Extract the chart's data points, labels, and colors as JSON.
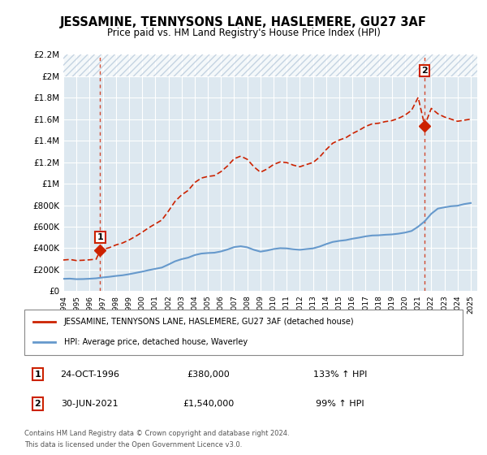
{
  "title": "JESSAMINE, TENNYSONS LANE, HASLEMERE, GU27 3AF",
  "subtitle": "Price paid vs. HM Land Registry's House Price Index (HPI)",
  "legend_line1": "JESSAMINE, TENNYSONS LANE, HASLEMERE, GU27 3AF (detached house)",
  "legend_line2": "HPI: Average price, detached house, Waverley",
  "sale1_label": "1",
  "sale1_date": "24-OCT-1996",
  "sale1_price": "£380,000",
  "sale1_hpi": "133% ↑ HPI",
  "sale1_year": 1996.81,
  "sale1_value": 380000,
  "sale2_label": "2",
  "sale2_date": "30-JUN-2021",
  "sale2_price": "£1,540,000",
  "sale2_hpi": "99% ↑ HPI",
  "sale2_year": 2021.5,
  "sale2_value": 1540000,
  "footnote1": "Contains HM Land Registry data © Crown copyright and database right 2024.",
  "footnote2": "This data is licensed under the Open Government Licence v3.0.",
  "xmin": 1994.0,
  "xmax": 2025.5,
  "ymin": 0,
  "ymax": 2200000,
  "yticks": [
    0,
    200000,
    400000,
    600000,
    800000,
    1000000,
    1200000,
    1400000,
    1600000,
    1800000,
    2000000,
    2200000
  ],
  "ytick_labels": [
    "£0",
    "£200K",
    "£400K",
    "£600K",
    "£800K",
    "£1M",
    "£1.2M",
    "£1.4M",
    "£1.6M",
    "£1.8M",
    "£2M",
    "£2.2M"
  ],
  "xticks": [
    1994,
    1995,
    1996,
    1997,
    1998,
    1999,
    2000,
    2001,
    2002,
    2003,
    2004,
    2005,
    2006,
    2007,
    2008,
    2009,
    2010,
    2011,
    2012,
    2013,
    2014,
    2015,
    2016,
    2017,
    2018,
    2019,
    2020,
    2021,
    2022,
    2023,
    2024,
    2025
  ],
  "hpi_color": "#6699cc",
  "house_color": "#cc2200",
  "sale_marker_color": "#cc2200",
  "background_plot": "#dde8f0",
  "hatch_color": "#b0c4d8",
  "grid_color": "#ffffff",
  "hpi_data": [
    [
      1994.0,
      115000
    ],
    [
      1994.5,
      117000
    ],
    [
      1995.0,
      112000
    ],
    [
      1995.5,
      113000
    ],
    [
      1996.0,
      116000
    ],
    [
      1996.5,
      120000
    ],
    [
      1997.0,
      128000
    ],
    [
      1997.5,
      134000
    ],
    [
      1998.0,
      142000
    ],
    [
      1998.5,
      148000
    ],
    [
      1999.0,
      158000
    ],
    [
      1999.5,
      170000
    ],
    [
      2000.0,
      182000
    ],
    [
      2000.5,
      196000
    ],
    [
      2001.0,
      208000
    ],
    [
      2001.5,
      220000
    ],
    [
      2002.0,
      248000
    ],
    [
      2002.5,
      278000
    ],
    [
      2003.0,
      298000
    ],
    [
      2003.5,
      312000
    ],
    [
      2004.0,
      336000
    ],
    [
      2004.5,
      350000
    ],
    [
      2005.0,
      355000
    ],
    [
      2005.5,
      358000
    ],
    [
      2006.0,
      370000
    ],
    [
      2006.5,
      388000
    ],
    [
      2007.0,
      410000
    ],
    [
      2007.5,
      418000
    ],
    [
      2008.0,
      408000
    ],
    [
      2008.5,
      385000
    ],
    [
      2009.0,
      368000
    ],
    [
      2009.5,
      378000
    ],
    [
      2010.0,
      392000
    ],
    [
      2010.5,
      400000
    ],
    [
      2011.0,
      398000
    ],
    [
      2011.5,
      390000
    ],
    [
      2012.0,
      385000
    ],
    [
      2012.5,
      392000
    ],
    [
      2013.0,
      398000
    ],
    [
      2013.5,
      415000
    ],
    [
      2014.0,
      438000
    ],
    [
      2014.5,
      458000
    ],
    [
      2015.0,
      468000
    ],
    [
      2015.5,
      475000
    ],
    [
      2016.0,
      488000
    ],
    [
      2016.5,
      498000
    ],
    [
      2017.0,
      510000
    ],
    [
      2017.5,
      518000
    ],
    [
      2018.0,
      520000
    ],
    [
      2018.5,
      525000
    ],
    [
      2019.0,
      528000
    ],
    [
      2019.5,
      535000
    ],
    [
      2020.0,
      545000
    ],
    [
      2020.5,
      560000
    ],
    [
      2021.0,
      600000
    ],
    [
      2021.5,
      650000
    ],
    [
      2022.0,
      720000
    ],
    [
      2022.5,
      768000
    ],
    [
      2023.0,
      780000
    ],
    [
      2023.5,
      790000
    ],
    [
      2024.0,
      795000
    ],
    [
      2024.5,
      810000
    ],
    [
      2025.0,
      820000
    ]
  ],
  "house_data": [
    [
      1994.0,
      290000
    ],
    [
      1994.5,
      295000
    ],
    [
      1995.0,
      285000
    ],
    [
      1995.5,
      288000
    ],
    [
      1996.0,
      292000
    ],
    [
      1996.5,
      298000
    ],
    [
      1996.81,
      380000
    ],
    [
      1997.0,
      388000
    ],
    [
      1997.5,
      405000
    ],
    [
      1998.0,
      430000
    ],
    [
      1998.5,
      448000
    ],
    [
      1999.0,
      476000
    ],
    [
      1999.5,
      510000
    ],
    [
      2000.0,
      548000
    ],
    [
      2000.5,
      590000
    ],
    [
      2001.0,
      626000
    ],
    [
      2001.5,
      662000
    ],
    [
      2002.0,
      745000
    ],
    [
      2002.5,
      835000
    ],
    [
      2003.0,
      895000
    ],
    [
      2003.5,
      937000
    ],
    [
      2004.0,
      1010000
    ],
    [
      2004.5,
      1052000
    ],
    [
      2005.0,
      1067000
    ],
    [
      2005.5,
      1075000
    ],
    [
      2006.0,
      1112000
    ],
    [
      2006.5,
      1165000
    ],
    [
      2007.0,
      1232000
    ],
    [
      2007.5,
      1256000
    ],
    [
      2008.0,
      1226000
    ],
    [
      2008.5,
      1157000
    ],
    [
      2009.0,
      1106000
    ],
    [
      2009.5,
      1136000
    ],
    [
      2010.0,
      1178000
    ],
    [
      2010.5,
      1202000
    ],
    [
      2011.0,
      1196000
    ],
    [
      2011.5,
      1172000
    ],
    [
      2012.0,
      1157000
    ],
    [
      2012.5,
      1178000
    ],
    [
      2013.0,
      1196000
    ],
    [
      2013.5,
      1247000
    ],
    [
      2014.0,
      1316000
    ],
    [
      2014.5,
      1376000
    ],
    [
      2015.0,
      1406000
    ],
    [
      2015.5,
      1427000
    ],
    [
      2016.0,
      1466000
    ],
    [
      2016.5,
      1496000
    ],
    [
      2017.0,
      1532000
    ],
    [
      2017.5,
      1556000
    ],
    [
      2018.0,
      1562000
    ],
    [
      2018.5,
      1577000
    ],
    [
      2019.0,
      1586000
    ],
    [
      2019.5,
      1607000
    ],
    [
      2020.0,
      1637000
    ],
    [
      2020.5,
      1682000
    ],
    [
      2021.0,
      1802000
    ],
    [
      2021.5,
      1540000
    ],
    [
      2022.0,
      1700000
    ],
    [
      2022.5,
      1650000
    ],
    [
      2023.0,
      1620000
    ],
    [
      2023.5,
      1600000
    ],
    [
      2024.0,
      1580000
    ],
    [
      2024.5,
      1590000
    ],
    [
      2025.0,
      1600000
    ]
  ]
}
